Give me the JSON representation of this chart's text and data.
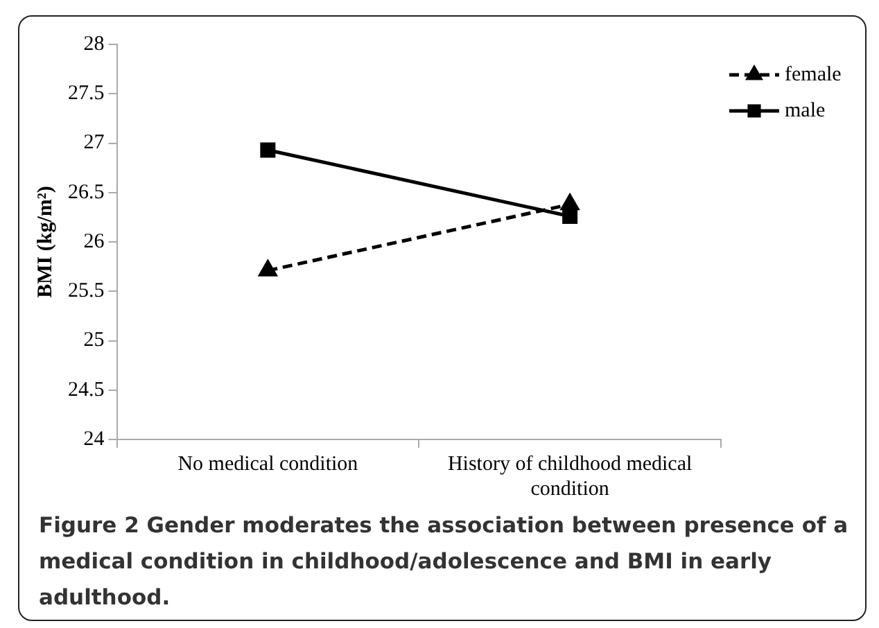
{
  "chart_data": {
    "type": "line",
    "ylabel": "BMI (kg/m²)",
    "categories": [
      "No medical condition",
      "History of childhood medical condition"
    ],
    "series": [
      {
        "name": "female",
        "color": "#000000",
        "values": [
          25.71,
          26.38
        ],
        "marker": "triangle",
        "line_style": "dashed"
      },
      {
        "name": "male",
        "color": "#000000",
        "values": [
          26.93,
          26.26
        ],
        "marker": "square",
        "line_style": "solid"
      }
    ],
    "ylim": [
      24,
      28
    ],
    "yticks": [
      24,
      24.5,
      25,
      25.5,
      26,
      26.5,
      27,
      27.5,
      28
    ],
    "grid": false,
    "legend": "top right",
    "annotations": [
      "Figure 2 Gender moderates the association between presence of a medical condition in childhood/adolescence and BMI in early adulthood."
    ]
  }
}
